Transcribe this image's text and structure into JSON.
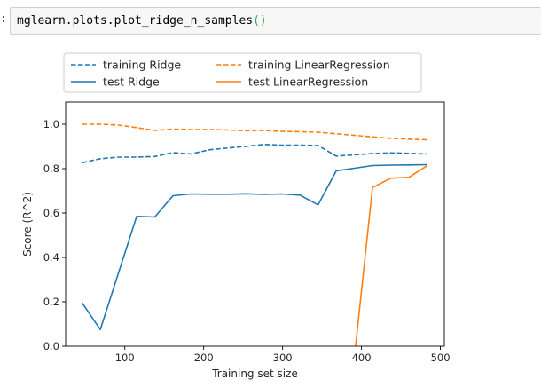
{
  "cell": {
    "prompt": ":",
    "code": "mglearn.plots.plot_ridge_n_samples",
    "code_parens": "()"
  },
  "chart_data": {
    "type": "line",
    "title": "",
    "xlabel": "Training set size",
    "ylabel": "Score (R^2)",
    "xlim": [
      25,
      505
    ],
    "ylim": [
      0,
      1.1
    ],
    "xticks": [
      100,
      200,
      300,
      400,
      500
    ],
    "yticks": [
      0.0,
      0.2,
      0.4,
      0.6,
      0.8,
      1.0
    ],
    "grid": false,
    "legend_position": "top (above plot, 2 columns)",
    "series": [
      {
        "name": "training Ridge",
        "color": "#1f77b4",
        "style": "dashed",
        "x": [
          46,
          69,
          92,
          115,
          138,
          161,
          184,
          207,
          230,
          253,
          276,
          299,
          322,
          345,
          368,
          391,
          414,
          437,
          460,
          483
        ],
        "y": [
          0.827,
          0.845,
          0.852,
          0.852,
          0.855,
          0.872,
          0.866,
          0.885,
          0.893,
          0.9,
          0.909,
          0.906,
          0.906,
          0.904,
          0.857,
          0.862,
          0.868,
          0.871,
          0.869,
          0.866
        ]
      },
      {
        "name": "test Ridge",
        "color": "#1f77b4",
        "style": "solid",
        "x": [
          46,
          69,
          92,
          115,
          138,
          161,
          184,
          207,
          230,
          253,
          276,
          299,
          322,
          345,
          368,
          391,
          414,
          437,
          460,
          483
        ],
        "y": [
          0.195,
          0.075,
          0.33,
          0.585,
          0.582,
          0.678,
          0.686,
          0.685,
          0.685,
          0.687,
          0.684,
          0.686,
          0.681,
          0.637,
          0.79,
          0.802,
          0.814,
          0.816,
          0.817,
          0.818
        ]
      },
      {
        "name": "training LinearRegression",
        "color": "#ff7f0e",
        "style": "dashed",
        "x": [
          46,
          69,
          92,
          115,
          138,
          161,
          184,
          207,
          230,
          253,
          276,
          299,
          322,
          345,
          368,
          391,
          414,
          437,
          460,
          483
        ],
        "y": [
          1.0,
          1.0,
          0.996,
          0.985,
          0.972,
          0.978,
          0.976,
          0.976,
          0.974,
          0.971,
          0.972,
          0.968,
          0.966,
          0.964,
          0.957,
          0.95,
          0.943,
          0.937,
          0.933,
          0.93
        ]
      },
      {
        "name": "test LinearRegression",
        "color": "#ff7f0e",
        "style": "solid",
        "x": [
          391,
          414,
          437,
          460,
          483
        ],
        "y": [
          -0.05,
          0.715,
          0.757,
          0.761,
          0.813
        ]
      }
    ]
  }
}
